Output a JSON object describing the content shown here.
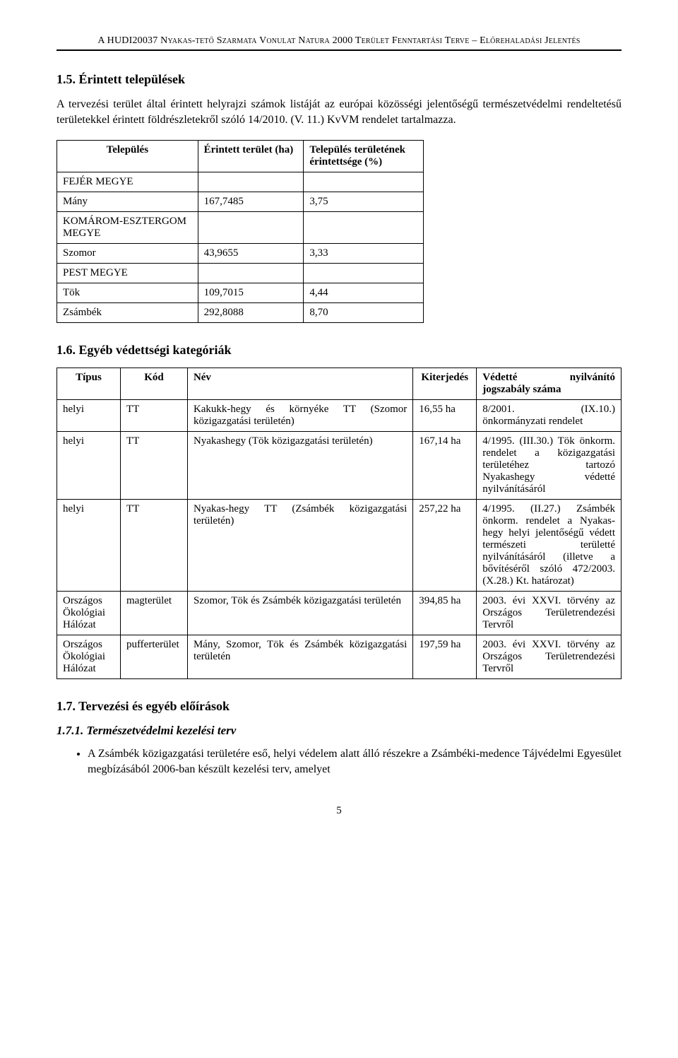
{
  "running_header": "A HUDI20037 Nyakas-tető Szarmata Vonulat Natura 2000 Terület Fenntartási Terve – Előrehaladási Jelentés",
  "s15": {
    "heading": "1.5. Érintett települések",
    "para": "A tervezési terület által érintett helyrajzi számok listáját az európai közösségi jelentőségű természetvédelmi rendeltetésű területekkel érintett földrészletekről szóló 14/2010. (V. 11.) KvVM rendelet tartalmazza."
  },
  "table1": {
    "header": [
      "Település",
      "Érintett terület (ha)",
      "Település területének érintettsége (%)"
    ],
    "sections": [
      {
        "label": "FEJÉR MEGYE",
        "rows": [
          [
            "Mány",
            "167,7485",
            "3,75"
          ]
        ]
      },
      {
        "label": "KOMÁROM-ESZTERGOM MEGYE",
        "rows": [
          [
            "Szomor",
            "43,9655",
            "3,33"
          ]
        ]
      },
      {
        "label": "PEST MEGYE",
        "rows": [
          [
            "Tök",
            "109,7015",
            "4,44"
          ],
          [
            "Zsámbék",
            "292,8088",
            "8,70"
          ]
        ]
      }
    ]
  },
  "s16": {
    "heading": "1.6. Egyéb védettségi kategóriák"
  },
  "table2": {
    "header": [
      "Típus",
      "Kód",
      "Név",
      "Kiterjedés",
      "Védetté nyilvánító jogszabály száma"
    ],
    "rows": [
      [
        "helyi",
        "TT",
        "Kakukk-hegy és környéke TT (Szomor közigazgatási területén)",
        "16,55 ha",
        "8/2001. (IX.10.) önkormányzati rendelet"
      ],
      [
        "helyi",
        "TT",
        "Nyakashegy (Tök közigazgatási területén)",
        "167,14 ha",
        "4/1995. (III.30.) Tök önkorm. rendelet a közigazgatási területéhez tartozó Nyakashegy védetté nyilvánításáról"
      ],
      [
        "helyi",
        "TT",
        "Nyakas-hegy TT (Zsámbék közigazgatási területén)",
        "257,22 ha",
        "4/1995. (II.27.) Zsámbék önkorm. rendelet a Nyakas-hegy helyi jelentőségű védett természeti területté nyilvánításáról (illetve a bővítéséről szóló 472/2003. (X.28.) Kt. határozat)"
      ],
      [
        "Országos Ökológiai Hálózat",
        "magterület",
        "Szomor, Tök és Zsámbék közigazgatási területén",
        "394,85 ha",
        "2003. évi XXVI. törvény az Országos Területrendezési Tervről"
      ],
      [
        "Országos Ökológiai Hálózat",
        "pufferterület",
        "Mány, Szomor, Tök és Zsámbék közigazgatási területén",
        "197,59 ha",
        "2003. évi XXVI. törvény az Országos Területrendezési Tervről"
      ]
    ]
  },
  "s17": {
    "heading": "1.7. Tervezési és egyéb előírások",
    "sub171": "1.7.1. Természetvédelmi kezelési terv",
    "bullet": "A Zsámbék közigazgatási területére eső, helyi védelem alatt álló részekre a Zsámbéki-medence Tájvédelmi Egyesület megbízásából 2006-ban készült kezelési terv, amelyet"
  },
  "page_num": "5"
}
